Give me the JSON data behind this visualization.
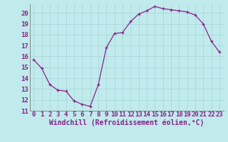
{
  "hours": [
    0,
    1,
    2,
    3,
    4,
    5,
    6,
    7,
    8,
    9,
    10,
    11,
    12,
    13,
    14,
    15,
    16,
    17,
    18,
    19,
    20,
    21,
    22,
    23
  ],
  "values": [
    15.7,
    14.9,
    13.4,
    12.9,
    12.8,
    11.9,
    11.6,
    11.4,
    13.4,
    16.8,
    18.1,
    18.2,
    19.2,
    19.9,
    20.2,
    20.6,
    20.4,
    20.3,
    20.2,
    20.1,
    19.8,
    19.0,
    17.4,
    16.4
  ],
  "line_color": "#882288",
  "marker": "+",
  "bg_color": "#c0eaec",
  "grid_color": "#aad8dc",
  "xlabel": "Windchill (Refroidissement éolien,°C)",
  "xlim": [
    -0.5,
    23.5
  ],
  "ylim": [
    11,
    20.8
  ],
  "yticks": [
    11,
    12,
    13,
    14,
    15,
    16,
    17,
    18,
    19,
    20
  ],
  "xticks": [
    0,
    1,
    2,
    3,
    4,
    5,
    6,
    7,
    8,
    9,
    10,
    11,
    12,
    13,
    14,
    15,
    16,
    17,
    18,
    19,
    20,
    21,
    22,
    23
  ],
  "tick_fontsize": 6.5,
  "xlabel_fontsize": 7,
  "label_color": "#882288",
  "spine_color": "#888888",
  "markersize": 3,
  "linewidth": 0.9
}
